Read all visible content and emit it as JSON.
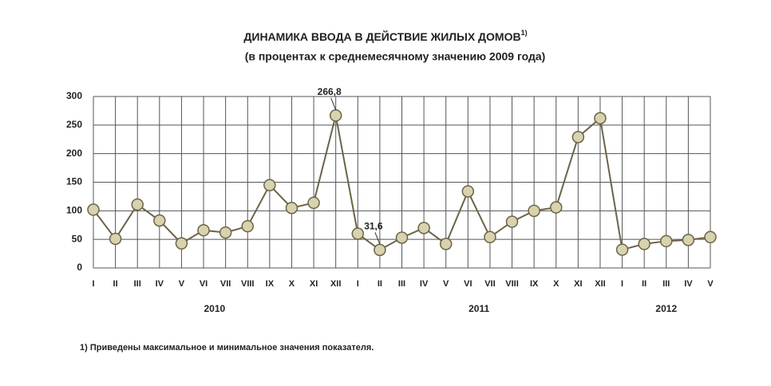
{
  "chart_data": {
    "type": "line",
    "title": "ДИНАМИКА ВВОДА В ДЕЙСТВИЕ ЖИЛЫХ ДОМОВ",
    "title_note": "1)",
    "subtitle": "(в процентах к среднемесячному значению 2009 года)",
    "categories": [
      "I",
      "II",
      "III",
      "IV",
      "V",
      "VI",
      "VII",
      "VIII",
      "IX",
      "X",
      "XI",
      "XII",
      "I",
      "II",
      "III",
      "IV",
      "V",
      "VI",
      "VII",
      "VIII",
      "IX",
      "X",
      "XI",
      "XII",
      "I",
      "II",
      "III",
      "IV",
      "V"
    ],
    "years": [
      "2010",
      "2011",
      "2012"
    ],
    "values": [
      102,
      51,
      111,
      83,
      43,
      66,
      62,
      73,
      145,
      105,
      114,
      266.8,
      60,
      31.6,
      53,
      70,
      42,
      134,
      54,
      81,
      100,
      106,
      229,
      262,
      32,
      42,
      47,
      49,
      54
    ],
    "value_labels": [
      null,
      null,
      null,
      null,
      null,
      null,
      null,
      null,
      null,
      null,
      null,
      "266,8",
      null,
      "31,6",
      null,
      null,
      null,
      null,
      null,
      null,
      null,
      null,
      null,
      null,
      null,
      null,
      null,
      null,
      null
    ],
    "color": "#6b6447",
    "marker_color": "#d8d2ae",
    "ylim": [
      0,
      300
    ],
    "yticks": [
      0,
      50,
      100,
      150,
      200,
      250,
      300
    ],
    "grid": true,
    "footnote": "1) Приведены максимальное и минимальное значения показателя."
  }
}
